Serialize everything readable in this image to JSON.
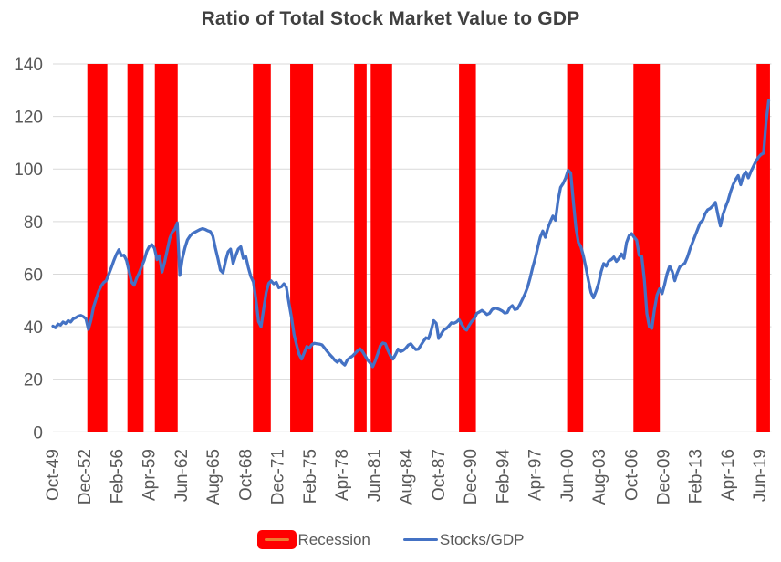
{
  "title": "Ratio of Total Stock Market Value to GDP",
  "colors": {
    "background": "#FFFFFF",
    "recession": "#FF0000",
    "recession_marker_line": "#ED7D31",
    "line": "#4472C4",
    "grid": "#D9D9D9",
    "axis_text": "#595959",
    "title_text": "#404040"
  },
  "legend": {
    "items": [
      {
        "label": "Recession",
        "type": "band"
      },
      {
        "label": "Stocks/GDP",
        "type": "line"
      }
    ]
  },
  "chart_data": {
    "type": "line",
    "title": "Ratio of Total Stock Market Value to GDP",
    "xlabel": "",
    "ylabel": "",
    "grid": true,
    "legend_position": "bottom",
    "y_axis": {
      "min": 0,
      "max": 140,
      "tick_step": 20,
      "ticks": [
        0,
        20,
        40,
        60,
        80,
        100,
        120,
        140
      ]
    },
    "x_axis": {
      "domain": [
        1949.75,
        2020.52
      ],
      "ticks": [
        {
          "label": "Oct-49",
          "year": 1949.75
        },
        {
          "label": "Dec-52",
          "year": 1952.9167
        },
        {
          "label": "Feb-56",
          "year": 1956.0833
        },
        {
          "label": "Apr-59",
          "year": 1959.25
        },
        {
          "label": "Jun-62",
          "year": 1962.4167
        },
        {
          "label": "Aug-65",
          "year": 1965.5833
        },
        {
          "label": "Oct-68",
          "year": 1968.75
        },
        {
          "label": "Dec-71",
          "year": 1971.9167
        },
        {
          "label": "Feb-75",
          "year": 1975.0833
        },
        {
          "label": "Apr-78",
          "year": 1978.25
        },
        {
          "label": "Jun-81",
          "year": 1981.4167
        },
        {
          "label": "Aug-84",
          "year": 1984.5833
        },
        {
          "label": "Oct-87",
          "year": 1987.75
        },
        {
          "label": "Dec-90",
          "year": 1990.9167
        },
        {
          "label": "Feb-94",
          "year": 1994.0833
        },
        {
          "label": "Apr-97",
          "year": 1997.25
        },
        {
          "label": "Jun-00",
          "year": 2000.4167
        },
        {
          "label": "Aug-03",
          "year": 2003.5833
        },
        {
          "label": "Oct-06",
          "year": 2006.75
        },
        {
          "label": "Dec-09",
          "year": 2009.9167
        },
        {
          "label": "Feb-13",
          "year": 2013.0833
        },
        {
          "label": "Apr-16",
          "year": 2016.25
        },
        {
          "label": "Jun-19",
          "year": 2019.4167
        }
      ]
    },
    "recessions": [
      {
        "from": 1953.14,
        "to": 1955.11
      },
      {
        "from": 1957.09,
        "to": 1958.68
      },
      {
        "from": 1959.79,
        "to": 1962.04
      },
      {
        "from": 1969.45,
        "to": 1971.21
      },
      {
        "from": 1973.12,
        "to": 1975.37
      },
      {
        "from": 1979.42,
        "to": 1980.65
      },
      {
        "from": 1981.05,
        "to": 1983.16
      },
      {
        "from": 1989.75,
        "to": 1991.41
      },
      {
        "from": 2000.4,
        "to": 2001.98
      },
      {
        "from": 2006.93,
        "to": 2009.53
      },
      {
        "from": 2019.06,
        "to": 2020.38
      }
    ],
    "series": [
      {
        "name": "Stocks/GDP",
        "start_year": 1949.75,
        "step_years": 0.25,
        "values": [
          40.2,
          39.6,
          41.0,
          40.6,
          41.8,
          41.2,
          42.3,
          41.8,
          43.0,
          43.4,
          44.0,
          44.3,
          43.8,
          43.0,
          39.0,
          42.5,
          47.5,
          50.5,
          53.5,
          55.5,
          56.8,
          57.5,
          60.0,
          62.5,
          65.2,
          67.5,
          69.3,
          67.0,
          67.2,
          65.2,
          61.0,
          57.0,
          55.8,
          58.5,
          60.5,
          63.0,
          65.3,
          68.7,
          70.5,
          71.2,
          69.8,
          65.5,
          67.0,
          60.8,
          64.5,
          69.0,
          73.5,
          76.0,
          77.0,
          79.5,
          59.5,
          66.0,
          70.0,
          73.0,
          74.5,
          75.5,
          76.0,
          76.5,
          77.0,
          77.3,
          77.0,
          76.5,
          76.2,
          74.5,
          70.0,
          66.0,
          61.5,
          60.5,
          65.0,
          68.5,
          69.5,
          64.0,
          67.0,
          69.5,
          70.4,
          66.0,
          66.7,
          62.5,
          59.0,
          57.0,
          50.0,
          42.0,
          40.0,
          46.5,
          53.0,
          56.5,
          57.4,
          56.3,
          56.9,
          54.8,
          55.2,
          56.3,
          55.0,
          49.0,
          43.5,
          37.0,
          33.0,
          29.5,
          27.7,
          30.0,
          32.5,
          31.8,
          33.2,
          33.7,
          33.5,
          33.4,
          33.1,
          31.9,
          30.7,
          29.5,
          28.5,
          27.3,
          26.5,
          27.5,
          26.2,
          25.4,
          27.4,
          28.2,
          28.8,
          29.8,
          30.8,
          31.6,
          30.5,
          28.9,
          27.3,
          26.2,
          24.8,
          27.0,
          29.8,
          32.8,
          33.8,
          33.5,
          31.0,
          28.9,
          27.7,
          29.5,
          31.5,
          30.5,
          31.0,
          31.8,
          33.0,
          33.5,
          32.3,
          31.3,
          31.5,
          33.0,
          34.5,
          35.8,
          35.4,
          38.5,
          42.3,
          41.3,
          35.5,
          37.2,
          38.8,
          39.3,
          40.3,
          41.5,
          41.3,
          41.8,
          42.7,
          41.0,
          39.4,
          38.7,
          40.5,
          42.0,
          43.0,
          45.1,
          45.6,
          46.2,
          45.5,
          44.6,
          45.1,
          46.5,
          47.1,
          46.9,
          46.5,
          46.0,
          45.2,
          45.4,
          47.2,
          48.0,
          46.5,
          46.8,
          48.5,
          50.5,
          52.5,
          55.0,
          58.5,
          62.5,
          66.0,
          70.0,
          74.0,
          76.4,
          74.0,
          77.5,
          80.0,
          82.1,
          80.5,
          88.0,
          93.0,
          94.5,
          96.5,
          99.5,
          98.5,
          88.0,
          78.0,
          72.0,
          70.5,
          67.0,
          62.5,
          57.5,
          53.0,
          51.0,
          53.5,
          56.5,
          61.0,
          64.0,
          63.0,
          65.0,
          65.5,
          66.5,
          64.8,
          66.0,
          67.7,
          66.0,
          72.0,
          74.6,
          75.4,
          74.0,
          72.9,
          67.1,
          66.8,
          58.0,
          45.0,
          40.0,
          39.4,
          46.5,
          52.0,
          54.4,
          52.6,
          56.0,
          60.2,
          63.0,
          61.0,
          57.5,
          60.5,
          62.8,
          63.5,
          64.2,
          66.5,
          69.5,
          72.0,
          74.5,
          77.0,
          79.5,
          80.5,
          83.0,
          84.5,
          85.0,
          86.0,
          87.3,
          82.5,
          78.3,
          82.7,
          85.5,
          88.0,
          91.4,
          94.0,
          96.0,
          97.5,
          94.0,
          97.5,
          98.9,
          96.6,
          99.0,
          101.0,
          103.0,
          104.5,
          105.5,
          106.0,
          118.0,
          126.0
        ]
      }
    ]
  }
}
